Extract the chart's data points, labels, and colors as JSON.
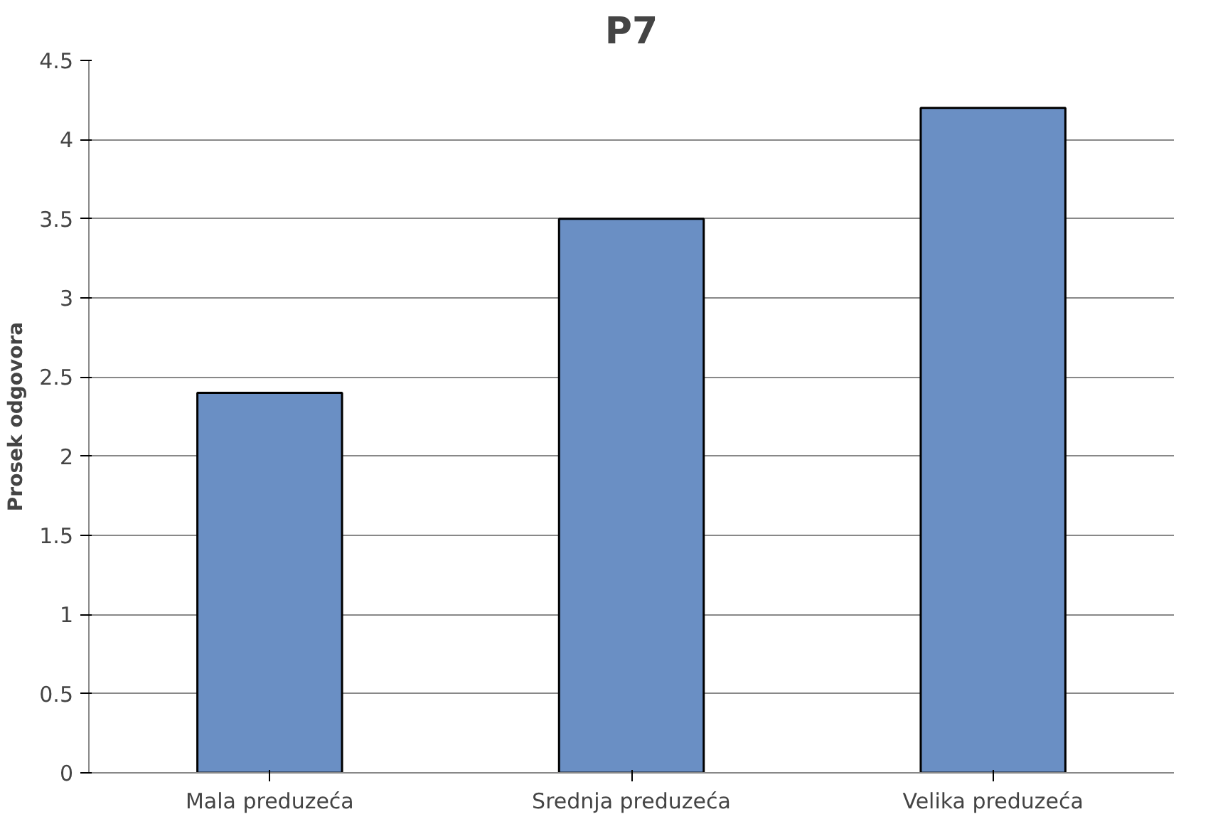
{
  "chart_data": {
    "type": "bar",
    "title": "P7",
    "ylabel": "Prosek odgovora",
    "categories": [
      "Mala preduzeća",
      "Srednja preduzeća",
      "Velika preduzeća"
    ],
    "values": [
      2.4,
      3.5,
      4.2
    ],
    "color": "#6a8fc4",
    "ylim": [
      0,
      4.5
    ],
    "yticks": [
      0,
      0.5,
      1,
      1.5,
      2,
      2.5,
      3,
      3.5,
      4,
      4.5
    ],
    "grid": "y"
  }
}
